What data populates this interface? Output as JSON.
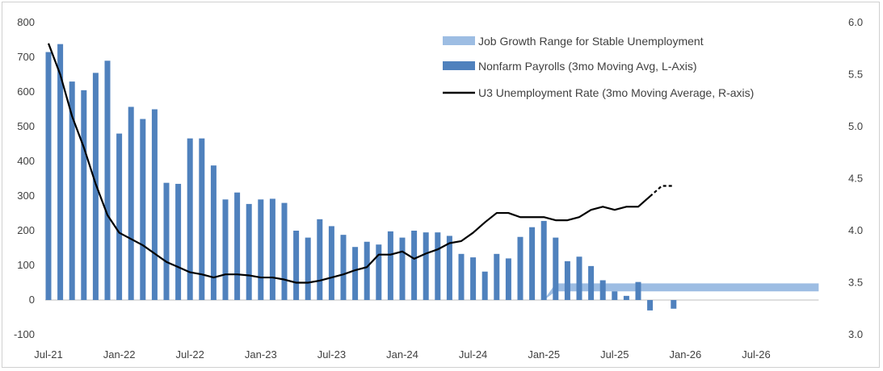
{
  "chart_data": {
    "type": "bar+line",
    "title": "",
    "legend": {
      "placement": "top-right",
      "entries": [
        "Job Growth Range for Stable Unemployment",
        "Nonfarm Payrolls (3mo Moving Avg, L-Axis)",
        "U3 Unemployment Rate (3mo Moving Average, R-axis)"
      ]
    },
    "x_axis": {
      "ticks": [
        "Jul-21",
        "Jan-22",
        "Jul-22",
        "Jan-23",
        "Jul-23",
        "Jan-24",
        "Jul-24",
        "Jan-25",
        "Jul-25",
        "Jan-26",
        "Jul-26"
      ],
      "range": [
        "2021-07",
        "2026-12"
      ]
    },
    "y_left": {
      "ticks": [
        "-100",
        "0",
        "100",
        "200",
        "300",
        "400",
        "500",
        "600",
        "700",
        "800"
      ],
      "range": [
        -100,
        800
      ]
    },
    "y_right": {
      "ticks": [
        "3.0",
        "3.5",
        "4.0",
        "4.5",
        "5.0",
        "5.5",
        "6.0"
      ],
      "range": [
        3.0,
        6.0
      ]
    },
    "colors": {
      "bars": "#4f81bd",
      "range_band": "#9dbde3",
      "unemployment_line": "#000000",
      "axis": "#bfbfbf",
      "text": "#404040"
    },
    "series": [
      {
        "name": "Nonfarm Payrolls (3mo Moving Avg, L-Axis)",
        "type": "bar",
        "x": [
          "2021-07",
          "2021-08",
          "2021-09",
          "2021-10",
          "2021-11",
          "2021-12",
          "2022-01",
          "2022-02",
          "2022-03",
          "2022-04",
          "2022-05",
          "2022-06",
          "2022-07",
          "2022-08",
          "2022-09",
          "2022-10",
          "2022-11",
          "2022-12",
          "2023-01",
          "2023-02",
          "2023-03",
          "2023-04",
          "2023-05",
          "2023-06",
          "2023-07",
          "2023-08",
          "2023-09",
          "2023-10",
          "2023-11",
          "2023-12",
          "2024-01",
          "2024-02",
          "2024-03",
          "2024-04",
          "2024-05",
          "2024-06",
          "2024-07",
          "2024-08",
          "2024-09",
          "2024-10",
          "2024-11",
          "2024-12",
          "2025-01",
          "2025-02",
          "2025-03",
          "2025-04",
          "2025-05",
          "2025-06",
          "2025-07",
          "2025-08",
          "2025-09",
          "2025-10",
          "2025-11",
          "2025-12"
        ],
        "values": [
          715,
          738,
          630,
          605,
          655,
          690,
          480,
          557,
          522,
          550,
          338,
          335,
          466,
          466,
          388,
          290,
          310,
          277,
          290,
          292,
          280,
          200,
          180,
          233,
          213,
          188,
          153,
          168,
          160,
          198,
          180,
          200,
          195,
          195,
          185,
          133,
          123,
          82,
          133,
          120,
          182,
          210,
          228,
          180,
          112,
          125,
          98,
          57,
          25,
          12,
          52,
          -30,
          null,
          -25
        ]
      },
      {
        "name": "U3 Unemployment Rate (3mo Moving Average, R-axis)",
        "type": "line",
        "x": [
          "2021-07",
          "2021-08",
          "2021-09",
          "2021-10",
          "2021-11",
          "2021-12",
          "2022-01",
          "2022-02",
          "2022-03",
          "2022-04",
          "2022-05",
          "2022-06",
          "2022-07",
          "2022-08",
          "2022-09",
          "2022-10",
          "2022-11",
          "2022-12",
          "2023-01",
          "2023-02",
          "2023-03",
          "2023-04",
          "2023-05",
          "2023-06",
          "2023-07",
          "2023-08",
          "2023-09",
          "2023-10",
          "2023-11",
          "2023-12",
          "2024-01",
          "2024-02",
          "2024-03",
          "2024-04",
          "2024-05",
          "2024-06",
          "2024-07",
          "2024-08",
          "2024-09",
          "2024-10",
          "2024-11",
          "2024-12",
          "2025-01",
          "2025-02",
          "2025-03",
          "2025-04",
          "2025-05",
          "2025-06",
          "2025-07",
          "2025-08",
          "2025-09",
          "2025-10",
          "2025-11",
          "2025-12"
        ],
        "values": [
          5.8,
          5.5,
          5.1,
          4.8,
          4.45,
          4.15,
          3.98,
          3.92,
          3.86,
          3.78,
          3.7,
          3.65,
          3.6,
          3.58,
          3.55,
          3.58,
          3.58,
          3.57,
          3.55,
          3.55,
          3.53,
          3.5,
          3.5,
          3.52,
          3.55,
          3.58,
          3.62,
          3.65,
          3.77,
          3.77,
          3.8,
          3.73,
          3.78,
          3.82,
          3.88,
          3.9,
          3.98,
          4.08,
          4.17,
          4.17,
          4.13,
          4.13,
          4.13,
          4.1,
          4.1,
          4.13,
          4.2,
          4.23,
          4.2,
          4.23,
          4.23,
          4.33,
          4.43,
          4.43
        ],
        "dashed_from": "2025-10"
      },
      {
        "name": "Job Growth Range for Stable Unemployment",
        "type": "range",
        "x_start": "2025-01",
        "x_end": "2026-12",
        "low": [
          0,
          25
        ],
        "high": 48
      }
    ]
  }
}
